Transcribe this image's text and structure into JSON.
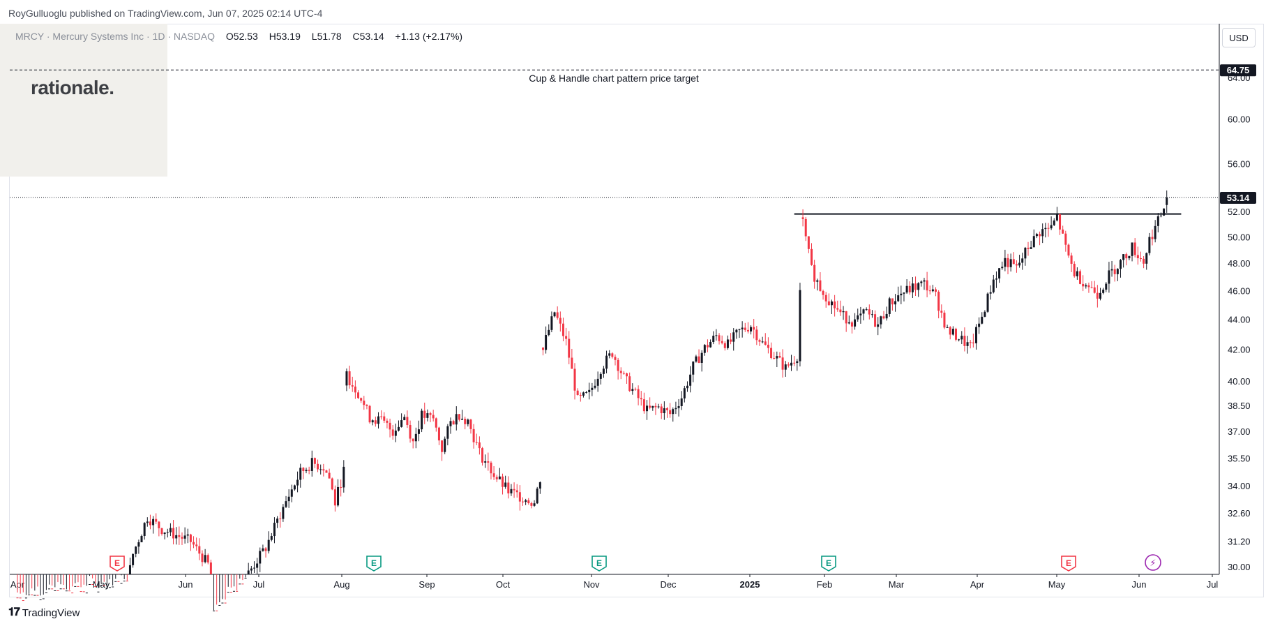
{
  "header": {
    "publisher": "RoyGulluoglu published on TradingView.com, Jun 07, 2025 02:14 UTC-4"
  },
  "legend": {
    "symbol": "MRCY · Mercury Systems Inc · 1D · NASDAQ",
    "open": "O52.53",
    "high": "H53.19",
    "low": "L51.78",
    "close": "C53.14",
    "change": "+1.13 (+2.17%)"
  },
  "brand": {
    "text": "rationale."
  },
  "currency_button": "USD",
  "footer": {
    "brand": "TradingView"
  },
  "colors": {
    "up": "#131722",
    "down": "#f23645",
    "earnings_green": "#089981",
    "earnings_red": "#f23645",
    "dividend_purple": "#9c27b0"
  },
  "chart_data": {
    "type": "candlestick",
    "symbol": "MRCY",
    "interval": "1D",
    "y_scale": "log",
    "y_ticks": [
      "64.00",
      "60.00",
      "56.00",
      "52.00",
      "50.00",
      "48.00",
      "46.00",
      "44.00",
      "42.00",
      "40.00",
      "38.50",
      "37.00",
      "35.50",
      "34.00",
      "32.60",
      "31.20",
      "30.00"
    ],
    "x_ticks": [
      "Apr",
      "May",
      "Jun",
      "Jul",
      "Aug",
      "Sep",
      "Oct",
      "Nov",
      "Dec",
      "2025",
      "Feb",
      "Mar",
      "Apr",
      "May",
      "Jun",
      "Jul"
    ],
    "last_price": {
      "value": 53.14,
      "label": "53.14"
    },
    "target": {
      "value": 64.75,
      "label": "64.75",
      "text": "Cup & Handle chart pattern price target"
    },
    "resistance": {
      "value": 51.8
    },
    "event_markers": [
      {
        "type": "earnings",
        "color": "red",
        "label": "E",
        "date": "May"
      },
      {
        "type": "earnings",
        "color": "green",
        "label": "E",
        "date": "Aug"
      },
      {
        "type": "earnings",
        "color": "green",
        "label": "E",
        "date": "Nov"
      },
      {
        "type": "earnings",
        "color": "green",
        "label": "E",
        "date": "Feb"
      },
      {
        "type": "earnings",
        "color": "red",
        "label": "E",
        "date": "May"
      },
      {
        "type": "dividend",
        "color": "purple",
        "label": "⚡",
        "date": "Jun"
      }
    ],
    "path": [
      [
        0,
        28.6
      ],
      [
        22,
        28.9
      ],
      [
        38,
        29.2
      ],
      [
        40,
        30.6
      ],
      [
        45,
        32.4
      ],
      [
        50,
        31.8
      ],
      [
        55,
        31.5
      ],
      [
        60,
        31.2
      ],
      [
        66,
        30.1
      ],
      [
        68,
        27.8
      ],
      [
        72,
        28.5
      ],
      [
        80,
        29.7
      ],
      [
        86,
        30.9
      ],
      [
        90,
        32.2
      ],
      [
        94,
        33.5
      ],
      [
        98,
        34.7
      ],
      [
        102,
        35.2
      ],
      [
        106,
        35.0
      ],
      [
        108,
        34.4
      ],
      [
        110,
        33.1
      ],
      [
        113,
        34.8
      ],
      [
        114,
        40.3
      ],
      [
        118,
        39.3
      ],
      [
        122,
        37.8
      ],
      [
        126,
        37.6
      ],
      [
        130,
        37.0
      ],
      [
        134,
        37.9
      ],
      [
        137,
        36.4
      ],
      [
        140,
        37.9
      ],
      [
        144,
        37.7
      ],
      [
        147,
        36.0
      ],
      [
        150,
        37.5
      ],
      [
        153,
        38.0
      ],
      [
        156,
        37.6
      ],
      [
        160,
        35.8
      ],
      [
        165,
        34.6
      ],
      [
        170,
        33.7
      ],
      [
        175,
        33.4
      ],
      [
        179,
        33.1
      ],
      [
        181,
        34.4
      ],
      [
        182,
        42.1
      ],
      [
        186,
        44.5
      ],
      [
        190,
        42.5
      ],
      [
        194,
        38.8
      ],
      [
        198,
        39.2
      ],
      [
        202,
        40.8
      ],
      [
        206,
        41.8
      ],
      [
        210,
        40.2
      ],
      [
        214,
        39.2
      ],
      [
        218,
        38.2
      ],
      [
        222,
        38.4
      ],
      [
        226,
        38.0
      ],
      [
        230,
        39.0
      ],
      [
        234,
        40.9
      ],
      [
        238,
        42.1
      ],
      [
        242,
        42.9
      ],
      [
        246,
        42.3
      ],
      [
        250,
        43.2
      ],
      [
        254,
        43.6
      ],
      [
        258,
        42.4
      ],
      [
        262,
        41.6
      ],
      [
        266,
        40.8
      ],
      [
        270,
        41.6
      ],
      [
        272,
        51.0
      ],
      [
        275,
        47.5
      ],
      [
        278,
        46.2
      ],
      [
        282,
        45.1
      ],
      [
        286,
        44.2
      ],
      [
        290,
        43.8
      ],
      [
        294,
        44.5
      ],
      [
        298,
        43.6
      ],
      [
        302,
        45.1
      ],
      [
        306,
        45.8
      ],
      [
        310,
        46.2
      ],
      [
        314,
        46.5
      ],
      [
        318,
        45.6
      ],
      [
        322,
        43.2
      ],
      [
        326,
        42.8
      ],
      [
        330,
        42.1
      ],
      [
        334,
        44.2
      ],
      [
        338,
        46.8
      ],
      [
        342,
        48.2
      ],
      [
        346,
        47.6
      ],
      [
        350,
        49.2
      ],
      [
        354,
        50.4
      ],
      [
        358,
        50.7
      ],
      [
        360,
        51.6
      ],
      [
        363,
        49.1
      ],
      [
        366,
        47.3
      ],
      [
        370,
        46.5
      ],
      [
        374,
        45.8
      ],
      [
        378,
        47.1
      ],
      [
        382,
        48.1
      ],
      [
        386,
        49.2
      ],
      [
        390,
        48.1
      ],
      [
        392,
        49.8
      ],
      [
        395,
        51.2
      ],
      [
        397,
        52.3
      ],
      [
        398,
        53.14
      ]
    ]
  }
}
